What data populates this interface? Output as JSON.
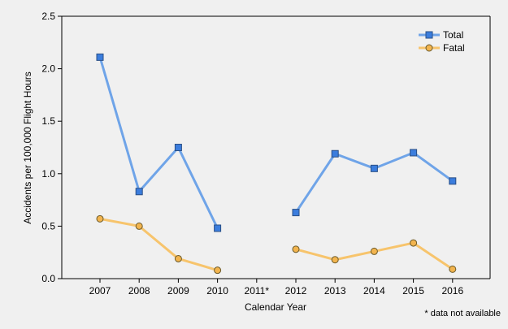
{
  "chart_data": {
    "type": "line",
    "title": "",
    "xlabel": "Calendar Year",
    "ylabel": "Accidents per 100,000 Flight Hours",
    "categories": [
      "2007",
      "2008",
      "2009",
      "2010",
      "2011*",
      "2012",
      "2013",
      "2014",
      "2015",
      "2016"
    ],
    "ylim": [
      0,
      2.5
    ],
    "yticks": [
      "0.0",
      "0.5",
      "1.0",
      "1.5",
      "2.0",
      "2.5"
    ],
    "grid": false,
    "legend_position": "top-right",
    "footnote": "* data not available",
    "series": [
      {
        "name": "Total",
        "color": "#6fa4e8",
        "marker": "square",
        "marker_color": "#3b7ddd",
        "values": [
          2.11,
          0.83,
          1.25,
          0.48,
          null,
          0.63,
          1.19,
          1.05,
          1.2,
          0.93
        ]
      },
      {
        "name": "Fatal",
        "color": "#f7c46c",
        "marker": "circle",
        "marker_color": "#f2b44e",
        "values": [
          0.57,
          0.5,
          0.19,
          0.08,
          null,
          0.28,
          0.18,
          0.26,
          0.34,
          0.09
        ]
      }
    ]
  }
}
